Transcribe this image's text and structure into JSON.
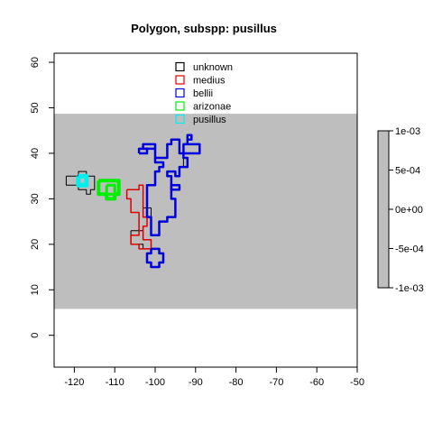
{
  "chart_data": {
    "type": "map",
    "title": "Polygon, subspp: pusillus",
    "xlim": [
      -125,
      -50
    ],
    "ylim": [
      -7,
      62
    ],
    "x_ticks": [
      -120,
      -110,
      -100,
      -90,
      -80,
      -70,
      -60,
      -50
    ],
    "y_ticks": [
      0,
      10,
      20,
      30,
      40,
      50,
      60
    ],
    "raster": {
      "x_range": [
        -125,
        -50
      ],
      "y_range": [
        5.8,
        48.7
      ],
      "value": 0,
      "color": "#bebebe"
    },
    "colorbar": {
      "labels": [
        "1e-03",
        "5e-04",
        "0e+00",
        "-5e-04",
        "-1e-03"
      ],
      "values": [
        0.001,
        0.0005,
        0,
        -0.0005,
        -0.001
      ],
      "color": "#bebebe"
    },
    "legend": {
      "position": "top-center",
      "entries": [
        {
          "label": "unknown",
          "color": "#000000"
        },
        {
          "label": "medius",
          "color": "#dd0000"
        },
        {
          "label": "bellii",
          "color": "#0000dd"
        },
        {
          "label": "arizonae",
          "color": "#00ee00"
        },
        {
          "label": "pusillus",
          "color": "#00eeee"
        }
      ]
    },
    "series": [
      {
        "name": "unknown",
        "color": "#000000",
        "lw": 1,
        "points": [
          [
            -122,
            35
          ],
          [
            -119,
            35
          ],
          [
            -119,
            36
          ],
          [
            -117,
            36
          ],
          [
            -117,
            35
          ],
          [
            -115,
            35
          ],
          [
            -115,
            32
          ],
          [
            -116,
            32
          ],
          [
            -116,
            31
          ],
          [
            -117,
            31
          ],
          [
            -117,
            32
          ],
          [
            -119,
            32
          ],
          [
            -119,
            33
          ],
          [
            -122,
            33
          ],
          [
            -122,
            35
          ]
        ]
      },
      {
        "name": "unknown",
        "color": "#000000",
        "lw": 1,
        "points": [
          [
            -106,
            23
          ],
          [
            -103,
            23
          ],
          [
            -103,
            21
          ],
          [
            -101,
            21
          ],
          [
            -101,
            19
          ],
          [
            -103,
            19
          ],
          [
            -103,
            20
          ],
          [
            -106,
            20
          ],
          [
            -106,
            23
          ]
        ]
      },
      {
        "name": "unknown",
        "color": "#000000",
        "lw": 1,
        "points": [
          [
            -103,
            28
          ],
          [
            -101,
            28
          ],
          [
            -101,
            26
          ],
          [
            -103,
            26
          ],
          [
            -103,
            28
          ]
        ]
      },
      {
        "name": "unknown",
        "color": "#000000",
        "lw": 1,
        "points": [
          [
            -93,
            39
          ],
          [
            -92,
            39
          ],
          [
            -92,
            37
          ],
          [
            -93,
            37
          ],
          [
            -93,
            39
          ]
        ]
      },
      {
        "name": "medius",
        "color": "#dd0000",
        "lw": 1.5,
        "points": [
          [
            -107,
            32
          ],
          [
            -104,
            32
          ],
          [
            -104,
            33
          ],
          [
            -103,
            33
          ],
          [
            -103,
            26
          ],
          [
            -102,
            26
          ],
          [
            -102,
            24
          ],
          [
            -103,
            24
          ],
          [
            -103,
            21
          ],
          [
            -101,
            21
          ],
          [
            -101,
            19
          ],
          [
            -104,
            19
          ],
          [
            -104,
            20
          ],
          [
            -106,
            20
          ],
          [
            -106,
            22
          ],
          [
            -104,
            22
          ],
          [
            -104,
            27
          ],
          [
            -106,
            27
          ],
          [
            -106,
            30
          ],
          [
            -107,
            30
          ],
          [
            -107,
            32
          ]
        ]
      },
      {
        "name": "bellii",
        "color": "#0000dd",
        "lw": 2.5,
        "points": [
          [
            -100,
            39
          ],
          [
            -97,
            39
          ],
          [
            -97,
            42
          ],
          [
            -96,
            42
          ],
          [
            -96,
            43
          ],
          [
            -94,
            43
          ],
          [
            -94,
            40
          ],
          [
            -93,
            40
          ],
          [
            -93,
            42
          ],
          [
            -92,
            42
          ],
          [
            -92,
            43
          ],
          [
            -91,
            43
          ],
          [
            -91,
            44
          ],
          [
            -92,
            44
          ],
          [
            -92,
            42
          ],
          [
            -89,
            42
          ],
          [
            -89,
            40
          ],
          [
            -93,
            40
          ],
          [
            -93,
            39
          ],
          [
            -92,
            39
          ],
          [
            -92,
            37
          ],
          [
            -94,
            37
          ],
          [
            -94,
            35
          ],
          [
            -95,
            35
          ],
          [
            -95,
            36
          ],
          [
            -97,
            36
          ],
          [
            -97,
            35
          ],
          [
            -96,
            35
          ],
          [
            -96,
            30
          ],
          [
            -95,
            30
          ],
          [
            -95,
            26
          ],
          [
            -97,
            26
          ],
          [
            -97,
            25
          ],
          [
            -99,
            25
          ],
          [
            -99,
            22
          ],
          [
            -101,
            22
          ],
          [
            -101,
            26
          ],
          [
            -102,
            26
          ],
          [
            -102,
            33
          ],
          [
            -100,
            33
          ],
          [
            -100,
            36
          ],
          [
            -99,
            36
          ],
          [
            -99,
            37
          ],
          [
            -98,
            37
          ],
          [
            -98,
            38
          ],
          [
            -100,
            38
          ],
          [
            -100,
            41
          ],
          [
            -103,
            41
          ],
          [
            -103,
            42
          ],
          [
            -100,
            42
          ],
          [
            -100,
            39
          ]
        ]
      },
      {
        "name": "bellii",
        "color": "#0000dd",
        "lw": 2.5,
        "points": [
          [
            -104,
            40
          ],
          [
            -102,
            40
          ],
          [
            -102,
            41
          ],
          [
            -104,
            41
          ],
          [
            -104,
            40
          ]
        ]
      },
      {
        "name": "bellii",
        "color": "#0000dd",
        "lw": 2.5,
        "points": [
          [
            -101,
            19
          ],
          [
            -99,
            19
          ],
          [
            -99,
            18
          ],
          [
            -98,
            18
          ],
          [
            -98,
            16
          ],
          [
            -99,
            16
          ],
          [
            -99,
            15
          ],
          [
            -101,
            15
          ],
          [
            -101,
            16
          ],
          [
            -102,
            16
          ],
          [
            -102,
            18
          ],
          [
            -101,
            18
          ],
          [
            -101,
            19
          ]
        ]
      },
      {
        "name": "bellii",
        "color": "#0000dd",
        "lw": 2.5,
        "points": [
          [
            -96,
            32
          ],
          [
            -94,
            32
          ],
          [
            -94,
            33
          ],
          [
            -96,
            33
          ],
          [
            -96,
            32
          ]
        ]
      },
      {
        "name": "arizonae",
        "color": "#00ee00",
        "lw": 4,
        "points": [
          [
            -114,
            34
          ],
          [
            -109,
            34
          ],
          [
            -109,
            31
          ],
          [
            -110,
            31
          ],
          [
            -110,
            30
          ],
          [
            -112,
            30
          ],
          [
            -112,
            31
          ],
          [
            -114,
            31
          ],
          [
            -114,
            34
          ]
        ]
      },
      {
        "name": "arizonae",
        "color": "#00ee00",
        "lw": 3,
        "points": [
          [
            -112,
            33
          ],
          [
            -110,
            33
          ],
          [
            -110,
            31
          ],
          [
            -112,
            31
          ],
          [
            -112,
            33
          ]
        ]
      },
      {
        "name": "pusillus",
        "color": "#00eeee",
        "lw": 5,
        "points": [
          [
            -119,
            35
          ],
          [
            -117,
            35
          ],
          [
            -117,
            33
          ],
          [
            -119,
            33
          ],
          [
            -119,
            35
          ]
        ]
      }
    ]
  }
}
